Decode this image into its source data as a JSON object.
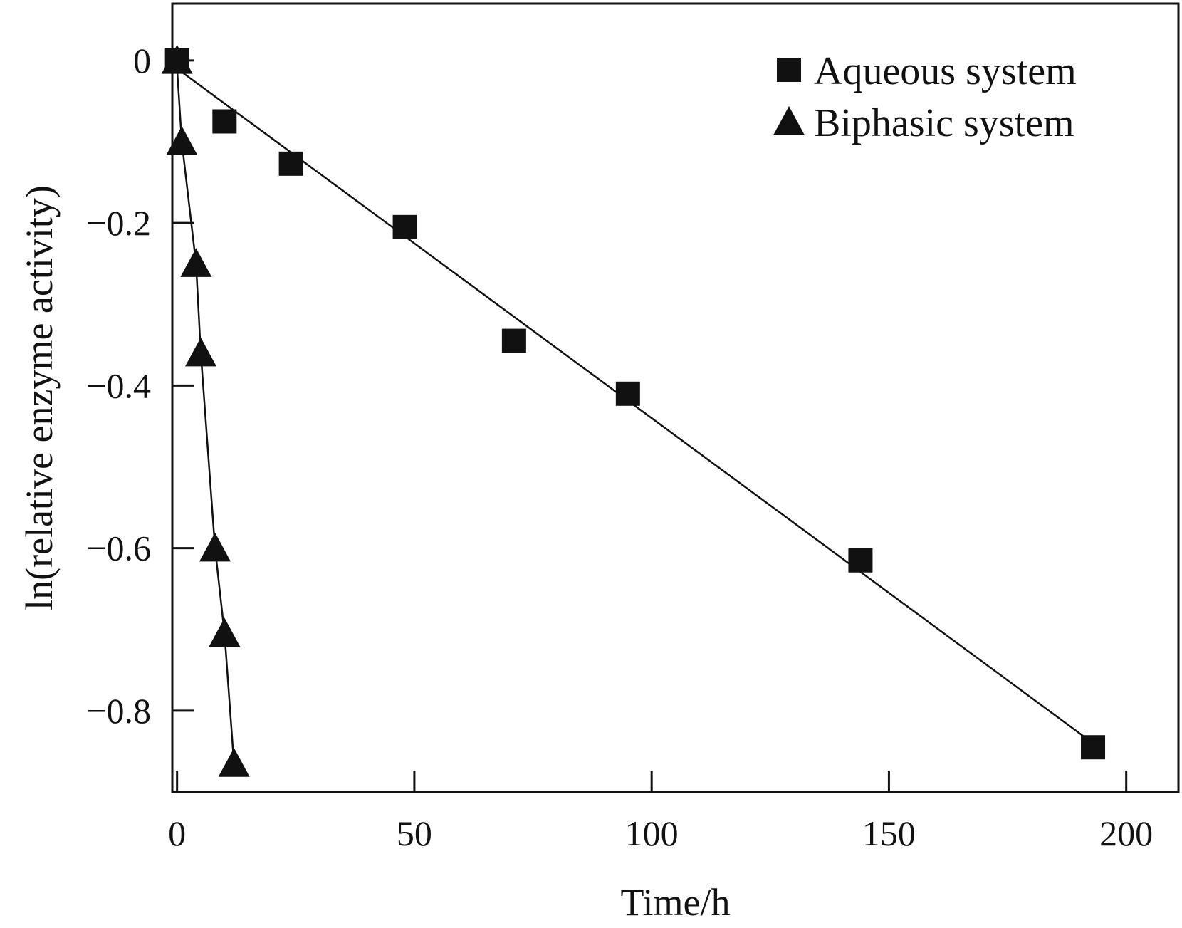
{
  "chart_data": {
    "type": "scatter",
    "title": "",
    "xlabel": "Time/h",
    "ylabel": "ln(relative enzyme activity)",
    "xlim": [
      -1,
      211
    ],
    "ylim": [
      -0.9,
      0.07
    ],
    "x_ticks": [
      {
        "value": 0,
        "label": "0"
      },
      {
        "value": 50,
        "label": "50"
      },
      {
        "value": 100,
        "label": "100"
      },
      {
        "value": 150,
        "label": "150"
      },
      {
        "value": 200,
        "label": "200"
      }
    ],
    "y_ticks": [
      {
        "value": 0,
        "label": "0"
      },
      {
        "value": -0.2,
        "label": "−0.2"
      },
      {
        "value": -0.4,
        "label": "−0.4"
      },
      {
        "value": -0.6,
        "label": "−0.6"
      },
      {
        "value": -0.8,
        "label": "−0.8"
      }
    ],
    "grid": false,
    "legend": "top-right",
    "series": [
      {
        "name": "Aqueous system",
        "marker": "square",
        "color": "#111111",
        "points": [
          {
            "x": 0,
            "y": 0
          },
          {
            "x": 10,
            "y": -0.075
          },
          {
            "x": 24,
            "y": -0.127
          },
          {
            "x": 48,
            "y": -0.205
          },
          {
            "x": 71,
            "y": -0.345
          },
          {
            "x": 95,
            "y": -0.41
          },
          {
            "x": 144,
            "y": -0.615
          },
          {
            "x": 193,
            "y": -0.845
          }
        ],
        "fit_line": [
          {
            "x": 0,
            "y": -0.01
          },
          {
            "x": 193,
            "y": -0.84
          }
        ]
      },
      {
        "name": "Biphasic system",
        "marker": "triangle",
        "color": "#111111",
        "points": [
          {
            "x": 0,
            "y": 0
          },
          {
            "x": 1,
            "y": -0.1
          },
          {
            "x": 4,
            "y": -0.25
          },
          {
            "x": 5,
            "y": -0.36
          },
          {
            "x": 8,
            "y": -0.6
          },
          {
            "x": 10,
            "y": -0.705
          },
          {
            "x": 12,
            "y": -0.865
          }
        ],
        "fit_line": [
          {
            "x": 0,
            "y": -0.01
          },
          {
            "x": 1,
            "y": -0.1
          },
          {
            "x": 4,
            "y": -0.25
          },
          {
            "x": 5,
            "y": -0.36
          },
          {
            "x": 8,
            "y": -0.6
          },
          {
            "x": 10,
            "y": -0.705
          },
          {
            "x": 12,
            "y": -0.865
          }
        ]
      }
    ]
  }
}
